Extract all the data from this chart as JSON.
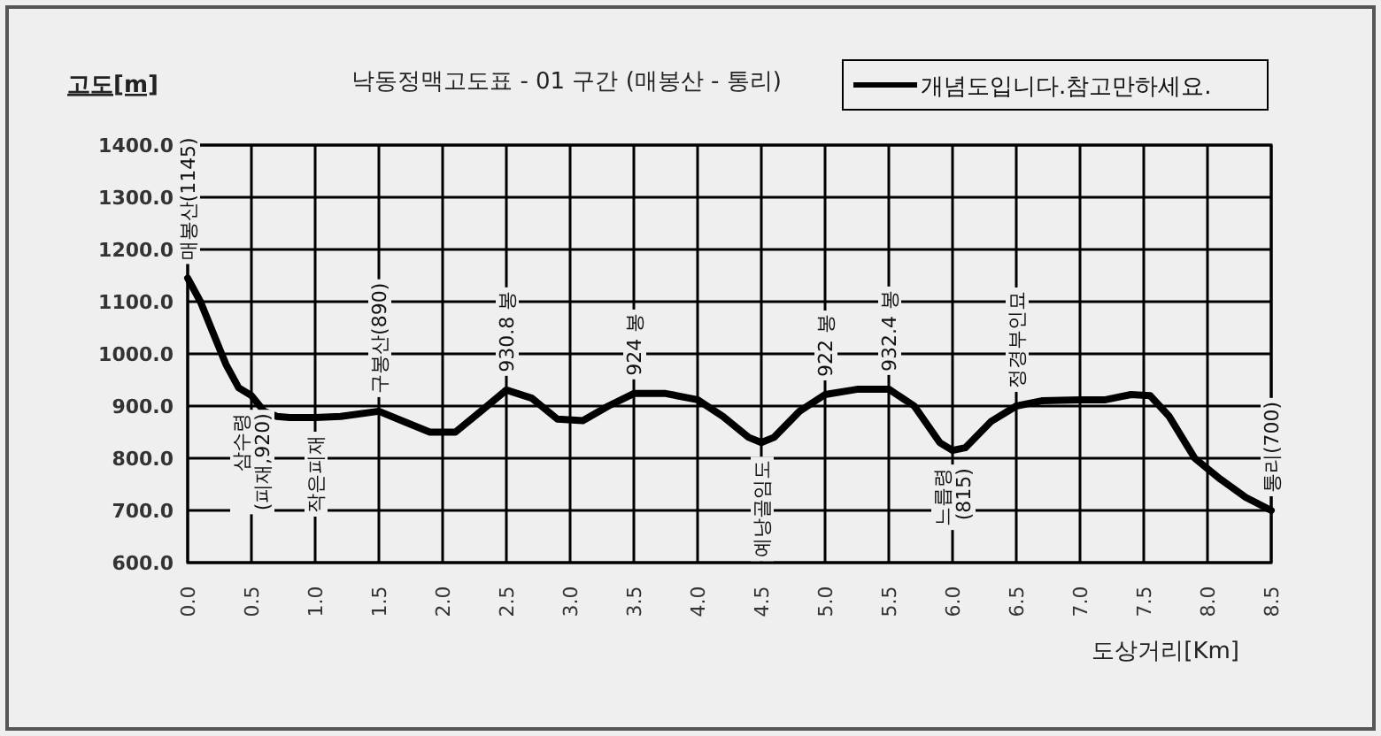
{
  "chart_data": {
    "type": "line",
    "title": "낙동정맥고도표 - 01 구간 (매봉산 - 통리)",
    "ylabel": "고도[m]",
    "xlabel": "도상거리[Km]",
    "xlim": [
      0,
      8.5
    ],
    "ylim": [
      600,
      1400
    ],
    "xticks": [
      {
        "value": 0,
        "label": "0.0"
      },
      {
        "value": 0.5,
        "label": "0.5"
      },
      {
        "value": 1,
        "label": "1.0"
      },
      {
        "value": 1.5,
        "label": "1.5"
      },
      {
        "value": 2,
        "label": "2.0"
      },
      {
        "value": 2.5,
        "label": "2.5"
      },
      {
        "value": 3,
        "label": "3.0"
      },
      {
        "value": 3.5,
        "label": "3.5"
      },
      {
        "value": 4,
        "label": "4.0"
      },
      {
        "value": 4.5,
        "label": "4.5"
      },
      {
        "value": 5,
        "label": "5.0"
      },
      {
        "value": 5.5,
        "label": "5.5"
      },
      {
        "value": 6,
        "label": "6.0"
      },
      {
        "value": 6.5,
        "label": "6.5"
      },
      {
        "value": 7,
        "label": "7.0"
      },
      {
        "value": 7.5,
        "label": "7.5"
      },
      {
        "value": 8,
        "label": "8.0"
      },
      {
        "value": 8.5,
        "label": "8.5"
      }
    ],
    "yticks": [
      {
        "value": 600,
        "label": "600.0"
      },
      {
        "value": 700,
        "label": "700.0"
      },
      {
        "value": 800,
        "label": "800.0"
      },
      {
        "value": 900,
        "label": "900.0"
      },
      {
        "value": 1000,
        "label": "1000.0"
      },
      {
        "value": 1100,
        "label": "1100.0"
      },
      {
        "value": 1200,
        "label": "1200.0"
      },
      {
        "value": 1300,
        "label": "1300.0"
      },
      {
        "value": 1400,
        "label": "1400.0"
      }
    ],
    "grid": true,
    "legend": "top right",
    "marker": "none",
    "line_style": "solid",
    "series": [
      {
        "name": "개념도입니다.참고만하세요.",
        "color": "#000000",
        "x": [
          0,
          0.1,
          0.2,
          0.3,
          0.4,
          0.5,
          0.6,
          0.7,
          0.8,
          1.0,
          1.2,
          1.5,
          1.7,
          1.9,
          2.1,
          2.3,
          2.5,
          2.7,
          2.9,
          3.1,
          3.3,
          3.5,
          3.75,
          4.0,
          4.2,
          4.4,
          4.5,
          4.6,
          4.8,
          5.0,
          5.25,
          5.5,
          5.7,
          5.9,
          6.0,
          6.1,
          6.3,
          6.5,
          6.7,
          7.0,
          7.2,
          7.4,
          7.55,
          7.7,
          7.9,
          8.1,
          8.3,
          8.5
        ],
        "values": [
          1145,
          1100,
          1040,
          980,
          935,
          920,
          890,
          880,
          878,
          878,
          880,
          890,
          870,
          850,
          850,
          890,
          930.8,
          915,
          875,
          872,
          900,
          924,
          924,
          912,
          880,
          840,
          830,
          840,
          890,
          922,
          932,
          932.4,
          900,
          830,
          815,
          820,
          870,
          900,
          910,
          912,
          912,
          922,
          920,
          880,
          800,
          760,
          725,
          700
        ]
      }
    ],
    "annotations": [
      {
        "text": "매봉산(1145)",
        "x": 0,
        "y": 1145
      },
      {
        "text": "삼수령\n(피재,920)",
        "x": 0.5,
        "y": 920
      },
      {
        "text": "작은피재",
        "x": 1.0,
        "y": 878
      },
      {
        "text": "구봉산(890)",
        "x": 1.5,
        "y": 890
      },
      {
        "text": "930.8 봉",
        "x": 2.5,
        "y": 930.8
      },
      {
        "text": "924 봉",
        "x": 3.5,
        "y": 924
      },
      {
        "text": "예낭골임도",
        "x": 4.5,
        "y": 830
      },
      {
        "text": "922 봉",
        "x": 5.0,
        "y": 922
      },
      {
        "text": "932.4 봉",
        "x": 5.5,
        "y": 932.4
      },
      {
        "text": "느릅령\n(815)",
        "x": 6.0,
        "y": 815
      },
      {
        "text": "정경부인묘",
        "x": 6.5,
        "y": 900
      },
      {
        "text": "통리(700)",
        "x": 8.5,
        "y": 700
      }
    ]
  }
}
